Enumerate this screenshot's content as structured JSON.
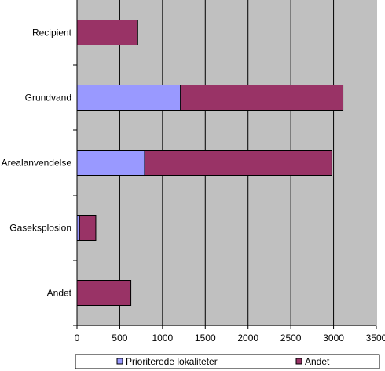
{
  "chart_data": {
    "type": "bar",
    "orientation": "horizontal",
    "stacked": true,
    "categories": [
      "Recipient",
      "Grundvand",
      "Arealanvendelse",
      "Gaseksplosion",
      "Andet"
    ],
    "series": [
      {
        "name": "Prioriterede lokaliteter",
        "color": "#9999ff",
        "values": [
          0,
          1210,
          790,
          30,
          0
        ]
      },
      {
        "name": "Andet",
        "color": "#993366",
        "values": [
          710,
          1900,
          2190,
          190,
          630
        ]
      }
    ],
    "title": "",
    "xlabel": "",
    "ylabel": "",
    "xlim": [
      0,
      3500
    ],
    "xticks": [
      "0",
      "500",
      "1000",
      "1500",
      "2000",
      "2500",
      "3000",
      "3500"
    ],
    "grid": true,
    "plot_background": "#c0c0c0",
    "legend_position": "bottom"
  }
}
